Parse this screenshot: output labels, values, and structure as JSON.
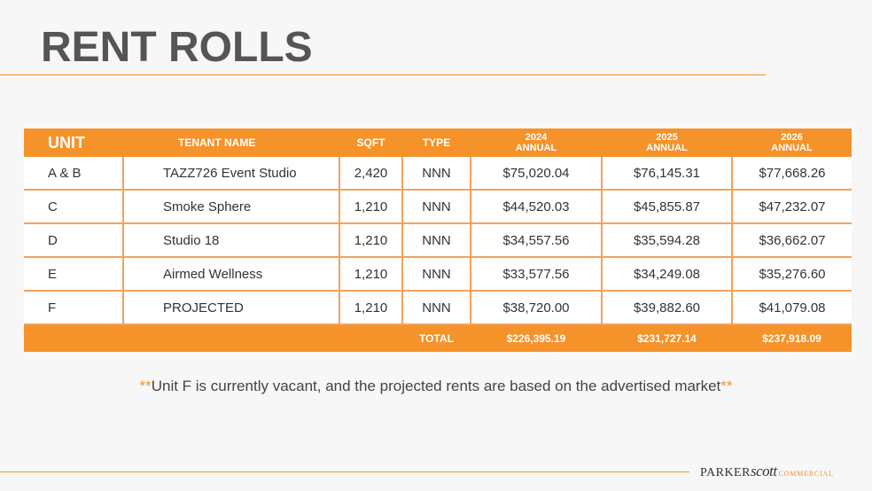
{
  "title": "RENT ROLLS",
  "colors": {
    "accent": "#f5922a",
    "title": "#555555"
  },
  "table": {
    "headers": {
      "unit": "UNIT",
      "tenant": "TENANT NAME",
      "sqft": "SQFT",
      "type": "TYPE",
      "y2024_year": "2024",
      "y2024_label": "ANNUAL",
      "y2025_year": "2025",
      "y2025_label": "ANNUAL",
      "y2026_year": "2026",
      "y2026_label": "ANNUAL"
    },
    "rows": [
      {
        "unit": "A & B",
        "tenant": "TAZZ726 Event Studio",
        "sqft": "2,420",
        "type": "NNN",
        "y2024": "$75,020.04",
        "y2025": "$76,145.31",
        "y2026": "$77,668.26"
      },
      {
        "unit": "C",
        "tenant": "Smoke Sphere",
        "sqft": "1,210",
        "type": "NNN",
        "y2024": "$44,520.03",
        "y2025": "$45,855.87",
        "y2026": "$47,232.07"
      },
      {
        "unit": "D",
        "tenant": "Studio 18",
        "sqft": "1,210",
        "type": "NNN",
        "y2024": "$34,557.56",
        "y2025": "$35,594.28",
        "y2026": "$36,662.07"
      },
      {
        "unit": "E",
        "tenant": "Airmed Wellness",
        "sqft": "1,210",
        "type": "NNN",
        "y2024": "$33,577.56",
        "y2025": "$34,249.08",
        "y2026": "$35,276.60"
      },
      {
        "unit": "F",
        "tenant": "PROJECTED",
        "sqft": "1,210",
        "type": "NNN",
        "y2024": "$38,720.00",
        "y2025": "$39,882.60",
        "y2026": "$41,079.08"
      }
    ],
    "total": {
      "label": "TOTAL",
      "y2024": "$226,395.19",
      "y2025": "$231,727.14",
      "y2026": "$237,918.09"
    }
  },
  "note": {
    "stars_open": "**",
    "text": "Unit F is currently vacant, and the projected rents are based on the advertised market",
    "stars_close": "**"
  },
  "logo": {
    "parker": "PARKER",
    "scott": "scott",
    "commercial": "COMMERCIAL"
  }
}
